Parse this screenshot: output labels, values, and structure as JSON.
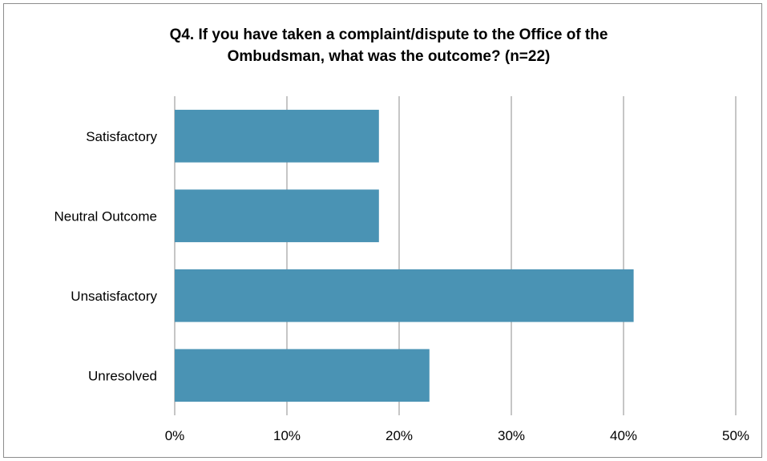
{
  "chart_data": {
    "type": "bar",
    "orientation": "horizontal",
    "title_lines": [
      "Q4. If you have taken a complaint/dispute to the Office of the",
      "Ombudsman, what was the outcome? (n=22)"
    ],
    "categories": [
      "Satisfactory",
      "Neutral Outcome",
      "Unsatisfactory",
      "Unresolved"
    ],
    "values": [
      18.2,
      18.2,
      40.9,
      22.7
    ],
    "xlim": [
      0,
      50
    ],
    "x_ticks": [
      0,
      10,
      20,
      30,
      40,
      50
    ],
    "x_tick_labels": [
      "0%",
      "10%",
      "20%",
      "30%",
      "40%",
      "50%"
    ],
    "grid": true,
    "bar_color": "#4a93b4",
    "grid_color": "#8c8c8c"
  }
}
